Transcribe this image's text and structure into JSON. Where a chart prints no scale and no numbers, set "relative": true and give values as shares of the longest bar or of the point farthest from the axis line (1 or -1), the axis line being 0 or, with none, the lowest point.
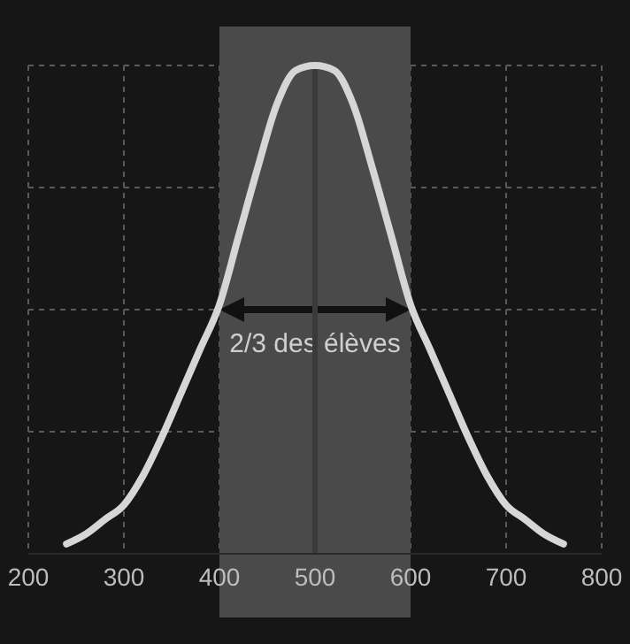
{
  "chart_data": {
    "type": "line",
    "relative": true,
    "x": [
      240,
      260,
      280,
      300,
      320,
      340,
      360,
      380,
      400,
      420,
      440,
      460,
      480,
      500,
      520,
      540,
      560,
      580,
      600,
      620,
      640,
      660,
      680,
      700,
      720,
      740,
      760
    ],
    "series": [
      {
        "color": "#d6d6d6",
        "values": [
          0.02,
          0.04,
          0.07,
          0.1,
          0.16,
          0.24,
          0.33,
          0.42,
          0.51,
          0.65,
          0.79,
          0.92,
          0.99,
          1,
          0.99,
          0.92,
          0.79,
          0.65,
          0.51,
          0.42,
          0.33,
          0.24,
          0.16,
          0.1,
          0.07,
          0.04,
          0.02
        ]
      }
    ],
    "xlim": [
      200,
      800
    ],
    "xticks": [
      200,
      300,
      400,
      500,
      600,
      700,
      800
    ],
    "bands": [
      {
        "axis": "x",
        "from": 400,
        "to": 600,
        "label": "2/3 des élèves",
        "color": "#4a4a4a"
      }
    ],
    "ref_lines": [
      {
        "axis": "x",
        "value": 500,
        "color": "#3a3a3a"
      }
    ],
    "grid": true,
    "marker": "none",
    "line_style": "solid"
  }
}
